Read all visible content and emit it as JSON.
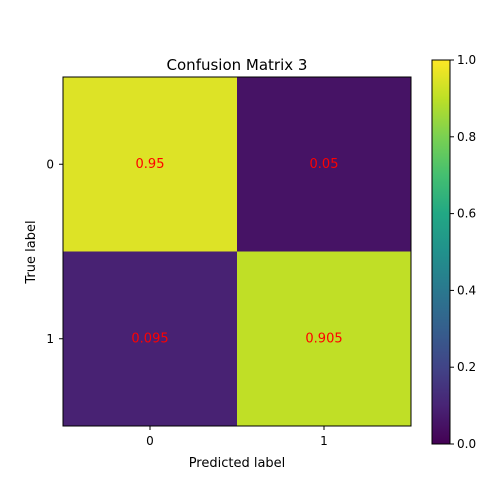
{
  "chart_data": {
    "type": "heatmap",
    "title": "Confusion Matrix 3",
    "xlabel": "Predicted label",
    "ylabel": "True label",
    "x_categories": [
      "0",
      "1"
    ],
    "y_categories": [
      "0",
      "1"
    ],
    "values": [
      [
        0.95,
        0.05
      ],
      [
        0.095,
        0.905
      ]
    ],
    "cell_labels": [
      [
        "0.95",
        "0.05"
      ],
      [
        "0.095",
        "0.905"
      ]
    ],
    "cell_label_color": "#ff0000",
    "colormap": "viridis",
    "colorbar": {
      "range": [
        0.0,
        1.0
      ],
      "tick_values": [
        0.0,
        0.2,
        0.4,
        0.6,
        0.8,
        1.0
      ],
      "tick_labels": [
        "0.0",
        "0.2",
        "0.4",
        "0.6",
        "0.8",
        "1.0"
      ]
    },
    "grid": false
  }
}
